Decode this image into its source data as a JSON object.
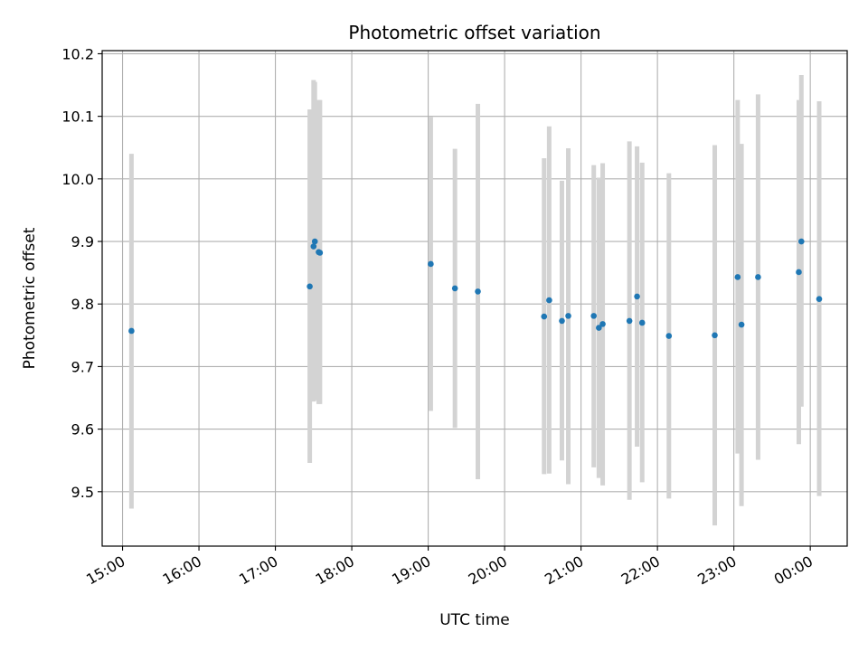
{
  "chart_data": {
    "type": "scatter",
    "title": "Photometric offset variation",
    "xlabel": "UTC time",
    "ylabel": "Photometric offset",
    "x_unit": "UTC time (HH:MM), spanning midnight",
    "xlim": [
      "14:44",
      "00:29"
    ],
    "ylim": [
      9.413,
      10.205
    ],
    "grid": true,
    "x_ticks": [
      "15:00",
      "16:00",
      "17:00",
      "18:00",
      "19:00",
      "20:00",
      "21:00",
      "22:00",
      "23:00",
      "00:00"
    ],
    "y_ticks": [
      "9.5",
      "9.6",
      "9.7",
      "9.8",
      "9.9",
      "10.0",
      "10.1",
      "10.2"
    ],
    "colors": {
      "marker": "#1f77b4",
      "errorbar": "#d3d3d3",
      "grid": "#b0b0b0",
      "axes": "#000000"
    },
    "series": [
      {
        "points": [
          {
            "x": "15:07",
            "y": 9.757,
            "ylow": 9.473,
            "yhigh": 10.04
          },
          {
            "x": "17:27",
            "y": 9.828,
            "ylow": 9.546,
            "yhigh": 10.111
          },
          {
            "x": "17:30",
            "y": 9.892,
            "ylow": 9.644,
            "yhigh": 10.158
          },
          {
            "x": "17:31",
            "y": 9.9,
            "ylow": 9.646,
            "yhigh": 10.155
          },
          {
            "x": "17:34",
            "y": 9.883,
            "ylow": 9.64,
            "yhigh": 10.126
          },
          {
            "x": "17:35",
            "y": 9.882,
            "ylow": 9.64,
            "yhigh": 10.126
          },
          {
            "x": "19:02",
            "y": 9.864,
            "ylow": 9.629,
            "yhigh": 10.099
          },
          {
            "x": "19:21",
            "y": 9.825,
            "ylow": 9.602,
            "yhigh": 10.048
          },
          {
            "x": "19:39",
            "y": 9.82,
            "ylow": 9.52,
            "yhigh": 10.12
          },
          {
            "x": "20:31",
            "y": 9.78,
            "ylow": 9.528,
            "yhigh": 10.033
          },
          {
            "x": "20:35",
            "y": 9.806,
            "ylow": 9.529,
            "yhigh": 10.084
          },
          {
            "x": "20:45",
            "y": 9.773,
            "ylow": 9.55,
            "yhigh": 9.997
          },
          {
            "x": "20:50",
            "y": 9.781,
            "ylow": 9.512,
            "yhigh": 10.049
          },
          {
            "x": "21:10",
            "y": 9.781,
            "ylow": 9.539,
            "yhigh": 10.022
          },
          {
            "x": "21:14",
            "y": 9.762,
            "ylow": 9.522,
            "yhigh": 10.002
          },
          {
            "x": "21:17",
            "y": 9.768,
            "ylow": 9.51,
            "yhigh": 10.025
          },
          {
            "x": "21:38",
            "y": 9.773,
            "ylow": 9.487,
            "yhigh": 10.06
          },
          {
            "x": "21:44",
            "y": 9.812,
            "ylow": 9.572,
            "yhigh": 10.052
          },
          {
            "x": "21:48",
            "y": 9.77,
            "ylow": 9.515,
            "yhigh": 10.026
          },
          {
            "x": "22:09",
            "y": 9.749,
            "ylow": 9.489,
            "yhigh": 10.009
          },
          {
            "x": "22:45",
            "y": 9.75,
            "ylow": 9.446,
            "yhigh": 10.054
          },
          {
            "x": "23:03",
            "y": 9.843,
            "ylow": 9.561,
            "yhigh": 10.126
          },
          {
            "x": "23:06",
            "y": 9.767,
            "ylow": 9.477,
            "yhigh": 10.056
          },
          {
            "x": "23:19",
            "y": 9.843,
            "ylow": 9.551,
            "yhigh": 10.135
          },
          {
            "x": "23:51",
            "y": 9.851,
            "ylow": 9.576,
            "yhigh": 10.126
          },
          {
            "x": "23:53",
            "y": 9.9,
            "ylow": 9.636,
            "yhigh": 10.166
          },
          {
            "x": "00:07",
            "y": 9.808,
            "ylow": 9.493,
            "yhigh": 10.124
          }
        ]
      }
    ]
  }
}
